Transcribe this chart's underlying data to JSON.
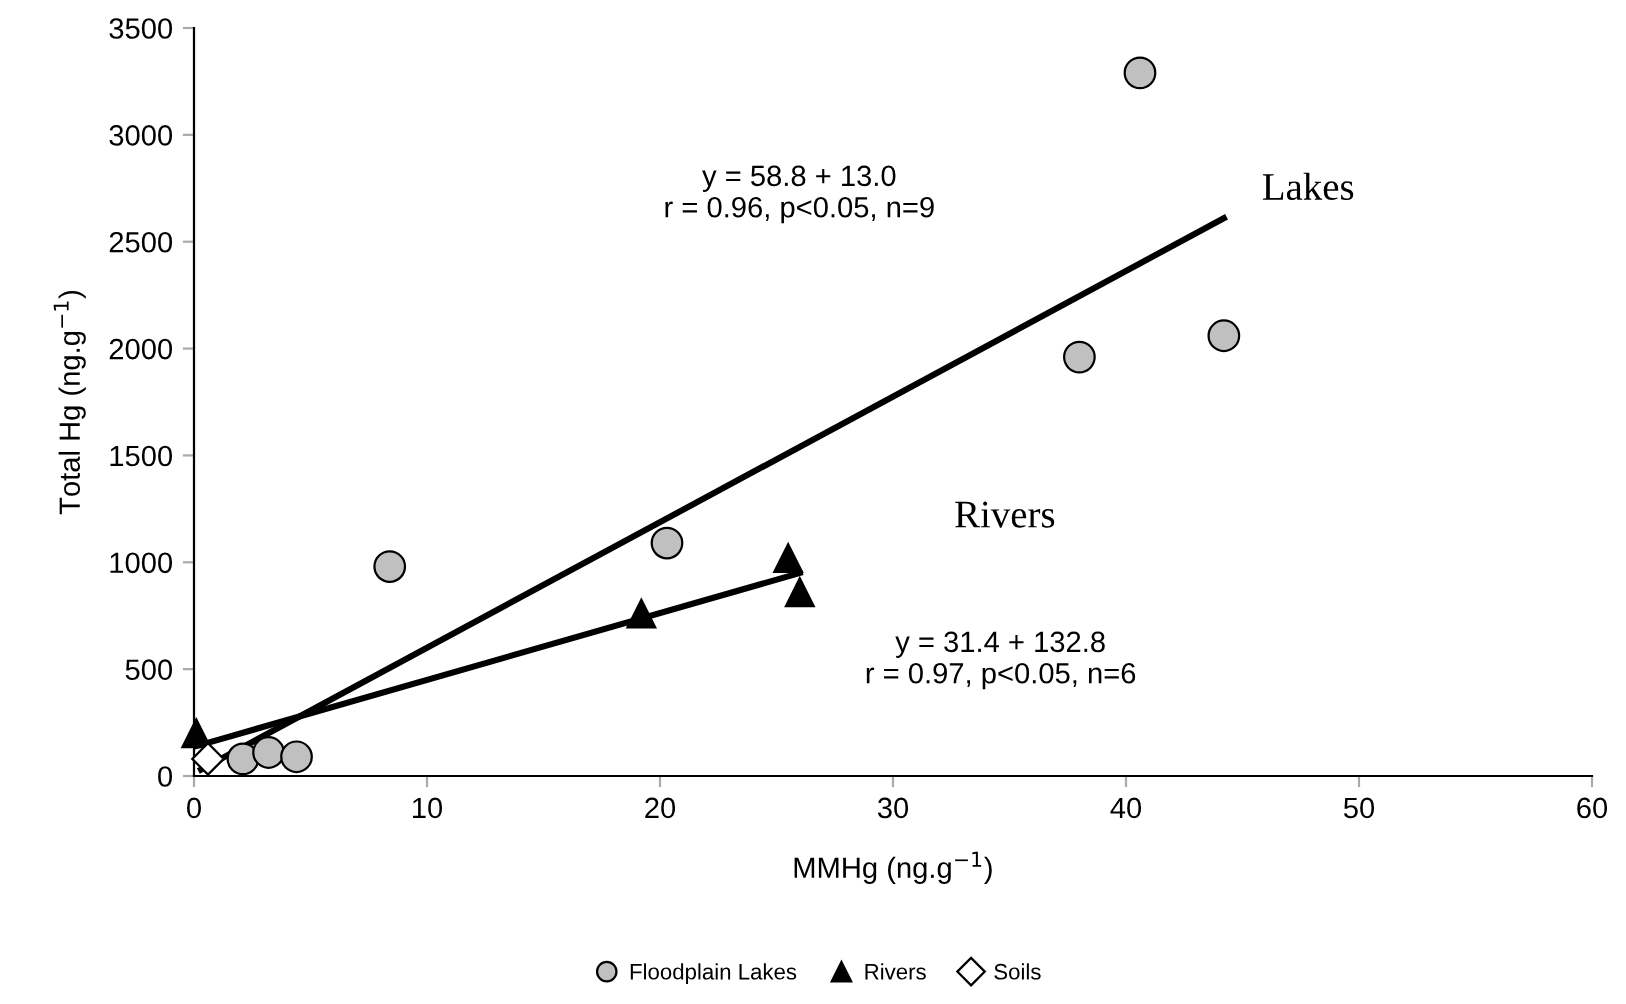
{
  "chart_data": {
    "type": "scatter",
    "xlabel": "MMHg (ng.g$^{−1}$)",
    "ylabel": "Total Hg (ng.g$^{−1}$)",
    "xlim": [
      0,
      60
    ],
    "xticks": [
      0,
      10,
      20,
      30,
      40,
      50,
      60
    ],
    "ylim": [
      0,
      3500
    ],
    "yticks": [
      0,
      500,
      1000,
      1500,
      2000,
      2500,
      3000,
      3500
    ],
    "grid": false,
    "legend": "bottom",
    "series": [
      {
        "type": "line",
        "color": "#000000",
        "marker": "none",
        "line_style": "solid",
        "x": [
          0.3,
          44.2
        ],
        "values": [
          30,
          2610
        ]
      },
      {
        "type": "line",
        "color": "#000000",
        "marker": "none",
        "line_style": "solid",
        "x": [
          0.1,
          26
        ],
        "values": [
          140,
          950
        ]
      },
      {
        "name": "Floodplain Lakes",
        "color": "#c0c0c0",
        "marker": "circle",
        "x": [
          2.1,
          3.2,
          4.4,
          8.4,
          20.3,
          38.0,
          40.6,
          44.2
        ],
        "values": [
          80,
          110,
          90,
          980,
          1090,
          1960,
          3290,
          2060
        ]
      },
      {
        "name": "Rivers",
        "color": "#000000",
        "marker": "triangle",
        "x": [
          0.1,
          19.2,
          25.5,
          26.0
        ],
        "values": [
          200,
          760,
          1020,
          860
        ]
      },
      {
        "name": "Soils",
        "color": "#ffffff",
        "marker": "diamond",
        "x": [
          0.6
        ],
        "values": [
          80
        ]
      }
    ],
    "annotations": [
      "y = 58.8 + 13.0\nr = 0.96, p<0.05, n=9",
      "Lakes",
      "Rivers",
      "y = 31.4 + 132.8\nr = 0.97, p<0.05, n=6"
    ]
  }
}
